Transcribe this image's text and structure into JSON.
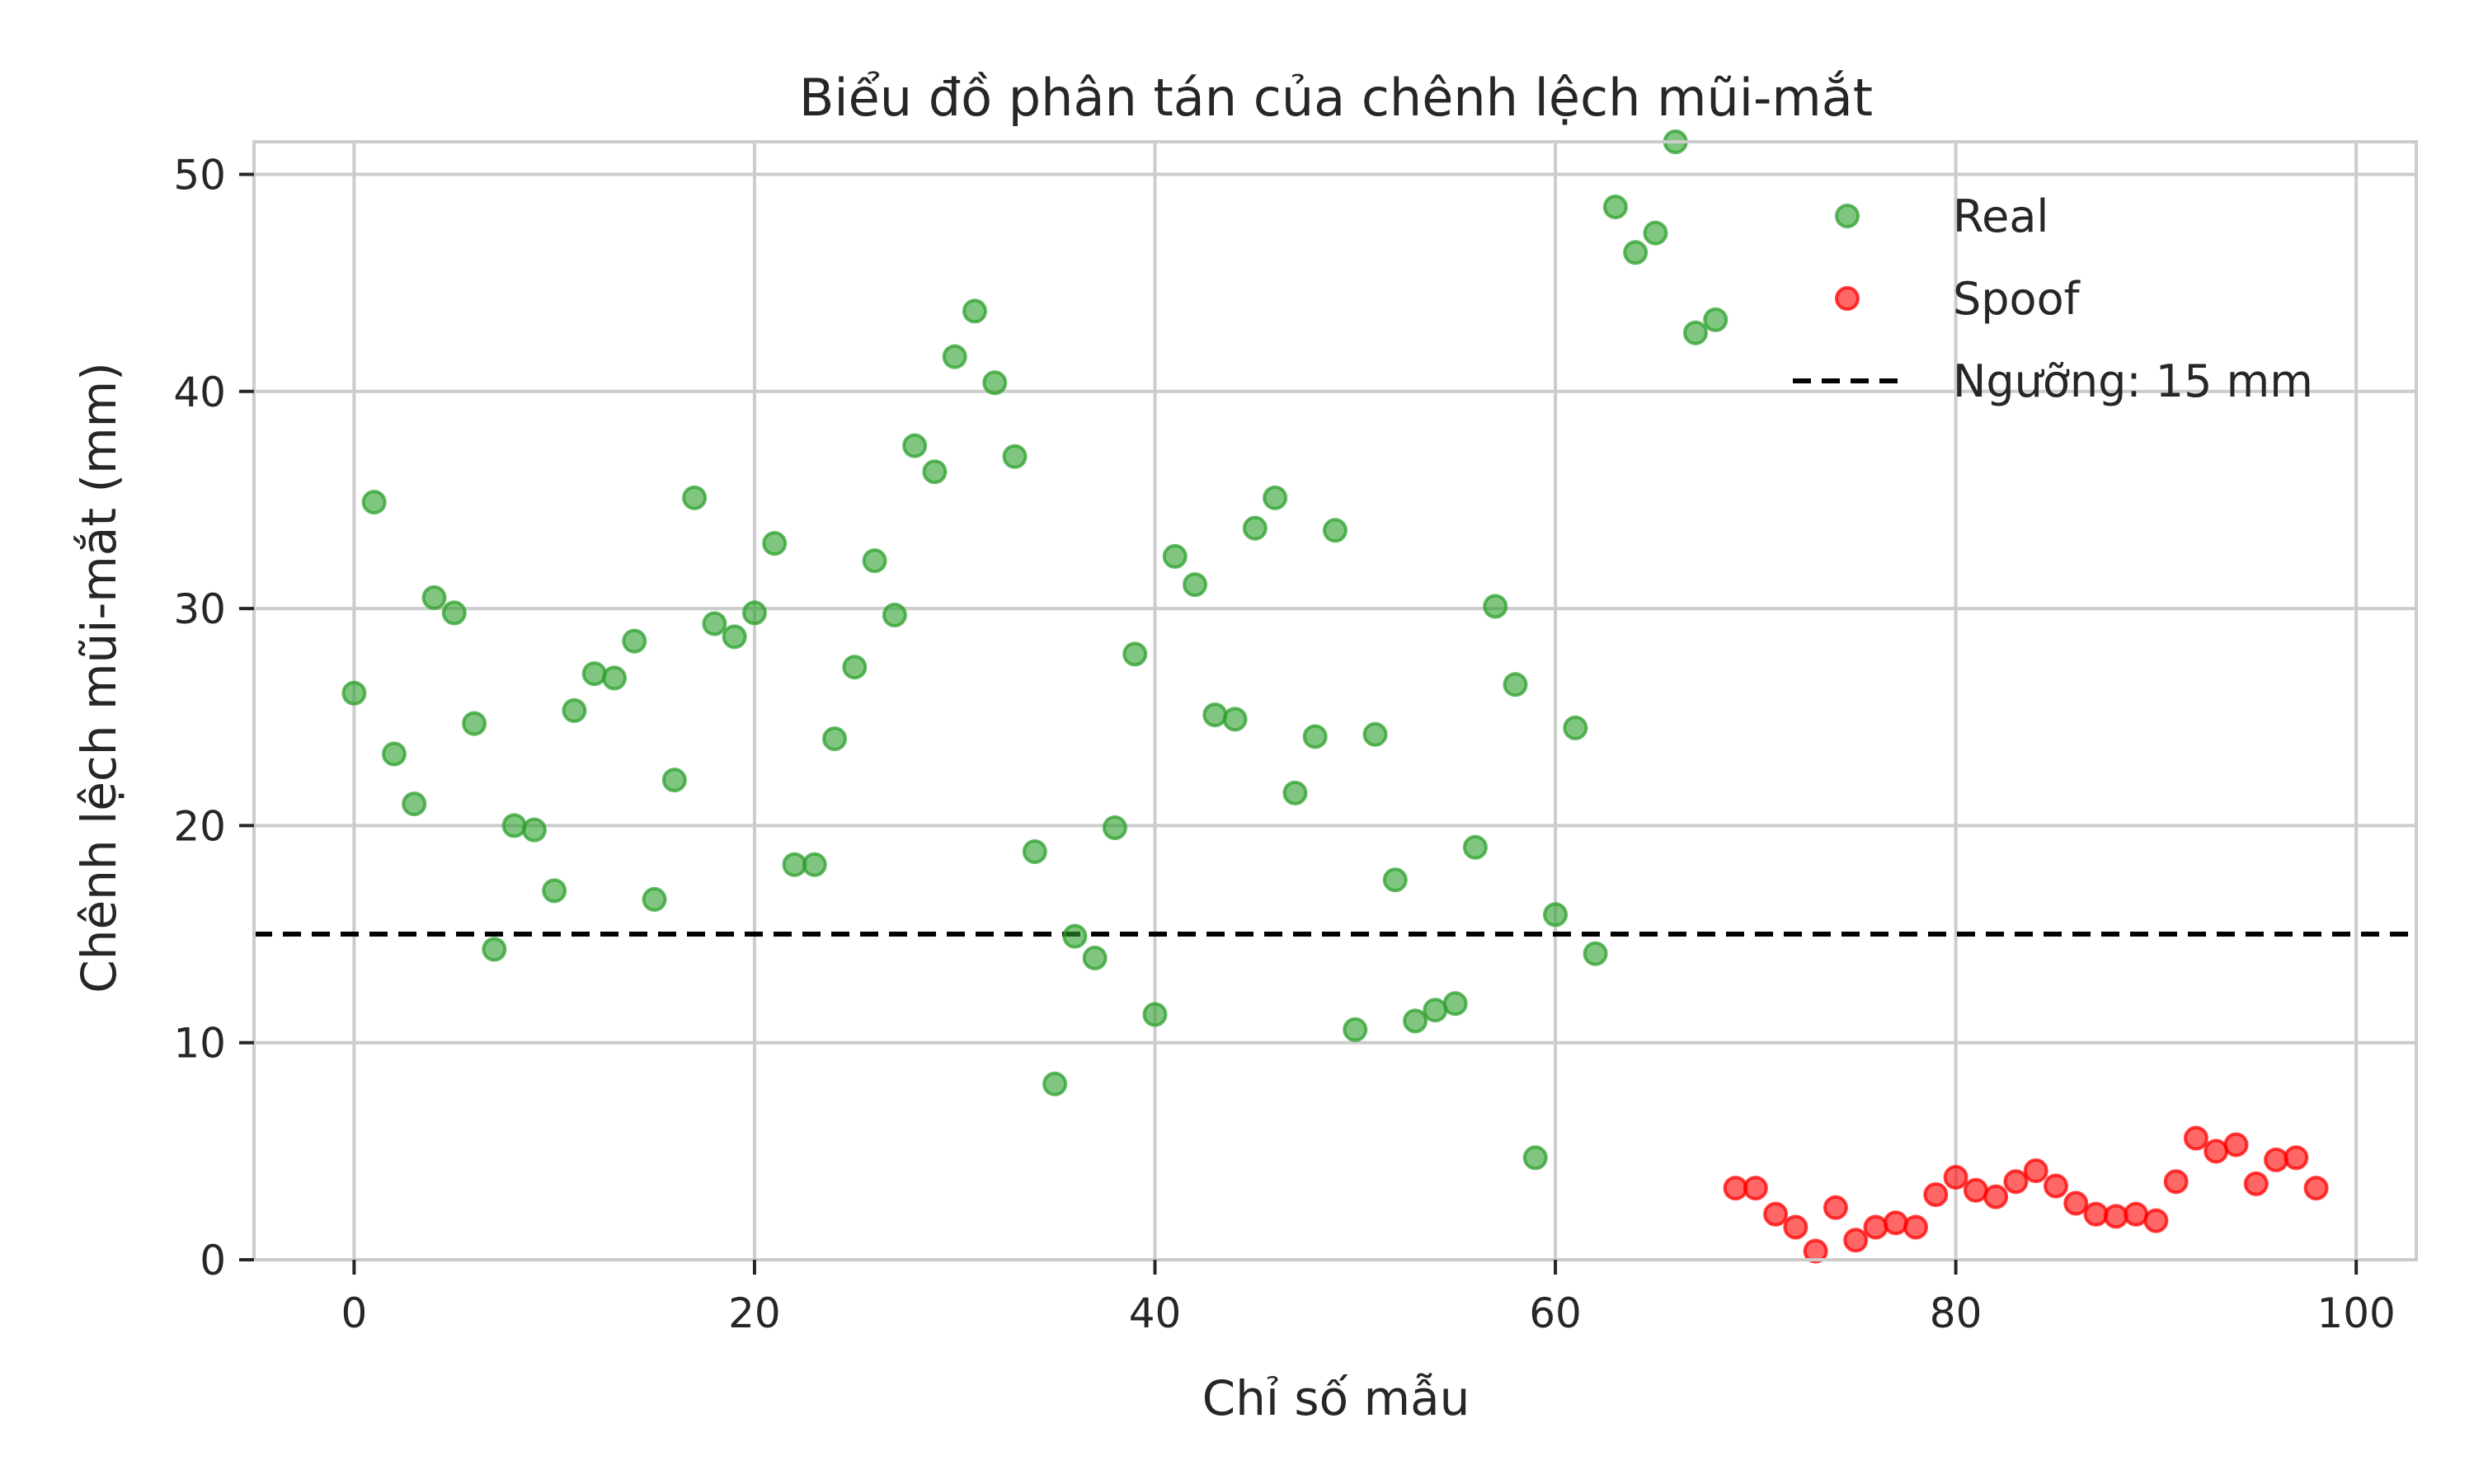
{
  "chart_data": {
    "type": "scatter",
    "title": "Biểu đồ phân tán của chênh lệch mũi-mắt",
    "xlabel": "Chỉ số mẫu",
    "ylabel": "Chênh lệch mũi-mắt (mm)",
    "xlim": [
      -5,
      103
    ],
    "ylim": [
      0,
      51.5
    ],
    "xticks": [
      0,
      20,
      40,
      60,
      80,
      100
    ],
    "yticks": [
      0,
      10,
      20,
      30,
      40,
      50
    ],
    "grid": true,
    "legend_position": "top-right",
    "series": [
      {
        "name": "Real",
        "color": "#2ca02c",
        "x": [
          0,
          1,
          2,
          3,
          4,
          5,
          6,
          7,
          8,
          9,
          10,
          11,
          12,
          13,
          14,
          15,
          16,
          17,
          18,
          19,
          20,
          21,
          22,
          23,
          24,
          25,
          26,
          27,
          28,
          29,
          30,
          31,
          32,
          33,
          34,
          35,
          36,
          37,
          38,
          39,
          40,
          41,
          42,
          43,
          44,
          45,
          46,
          47,
          48,
          49,
          50,
          51,
          52,
          53,
          54,
          55,
          56,
          57,
          58,
          59,
          60,
          61,
          62,
          63,
          64,
          65,
          66,
          67,
          68
        ],
        "y": [
          26.1,
          34.9,
          23.3,
          21.0,
          30.5,
          29.8,
          24.7,
          14.3,
          20.0,
          19.8,
          17.0,
          25.3,
          27.0,
          26.8,
          28.5,
          16.6,
          22.1,
          35.1,
          29.3,
          28.7,
          29.8,
          33.0,
          18.2,
          18.2,
          24.0,
          27.3,
          32.2,
          29.7,
          37.5,
          36.3,
          41.6,
          43.7,
          40.4,
          37.0,
          18.8,
          8.1,
          14.9,
          13.9,
          19.9,
          27.9,
          11.3,
          32.4,
          31.1,
          25.1,
          24.9,
          33.7,
          35.1,
          21.5,
          24.1,
          33.6,
          10.6,
          24.2,
          17.5,
          11.0,
          11.5,
          11.8,
          19.0,
          30.1,
          26.5,
          4.7,
          15.9,
          24.5,
          14.1,
          48.5,
          46.4,
          47.3,
          51.5,
          42.7,
          43.3
        ]
      },
      {
        "name": "Spoof",
        "color": "#ff0000",
        "x": [
          69,
          70,
          71,
          72,
          73,
          74,
          75,
          76,
          77,
          78,
          79,
          80,
          81,
          82,
          83,
          84,
          85,
          86,
          87,
          88,
          89,
          90,
          91,
          92,
          93,
          94,
          95,
          96,
          97,
          98
        ],
        "y": [
          3.3,
          3.3,
          2.1,
          1.5,
          0.4,
          2.4,
          0.9,
          1.5,
          1.7,
          1.5,
          3.0,
          3.8,
          3.2,
          2.9,
          3.6,
          4.1,
          3.4,
          2.6,
          2.1,
          2.0,
          2.1,
          1.8,
          3.6,
          5.6,
          5.0,
          5.3,
          3.5,
          4.6,
          4.7,
          3.3
        ]
      }
    ],
    "threshold": {
      "value": 15,
      "label": "Ngưỡng: 15 mm",
      "color": "#000000",
      "style": "dashed"
    }
  }
}
